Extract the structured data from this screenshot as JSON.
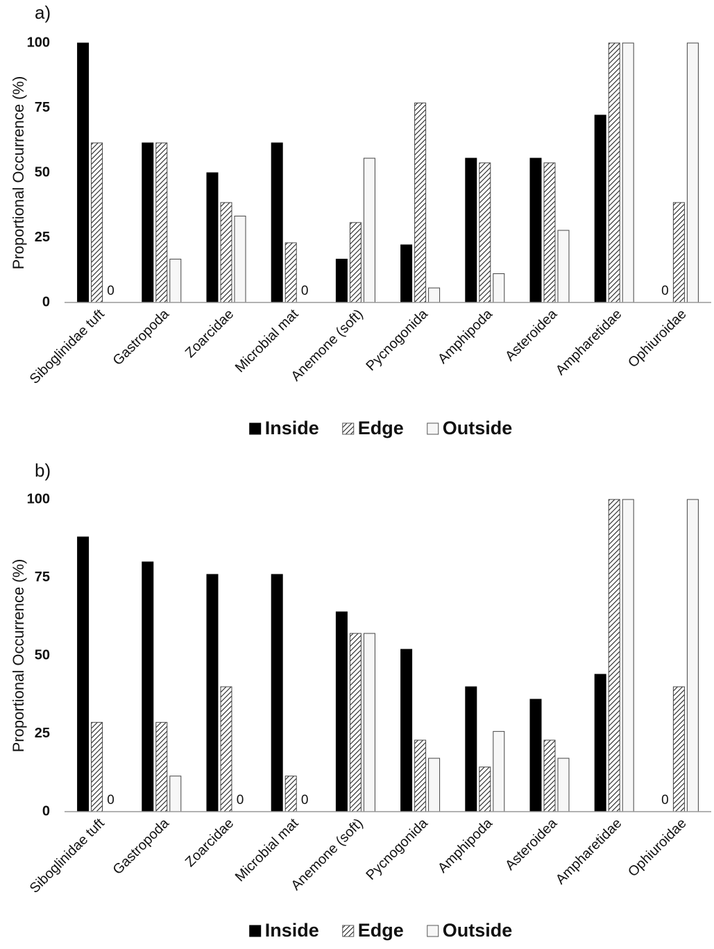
{
  "chart_data": [
    {
      "type": "bar",
      "title": "a)",
      "y_label": "Proportional Occurrence (%)",
      "categories": [
        "Siboglinidae tuft",
        "Gastropoda",
        "Zoarcidae",
        "Microbial mat",
        "Anemone (soft)",
        "Pycnogonida",
        "Amphipoda",
        "Asteroidea",
        "Ampharetidae",
        "Ophiuroidae"
      ],
      "series": [
        {
          "name": "Inside",
          "color": "#000000",
          "values": [
            100,
            61.5,
            50,
            61.5,
            16.7,
            22.2,
            55.6,
            55.6,
            72.2,
            0
          ]
        },
        {
          "name": "Edge",
          "color": "#ffffff",
          "pattern": "hatch",
          "values": [
            61.5,
            61.5,
            38.5,
            23,
            30.8,
            76.9,
            53.8,
            53.8,
            100,
            38.5
          ]
        },
        {
          "name": "Outside",
          "color": "#f7f7f7",
          "values": [
            0,
            16.7,
            33.3,
            0,
            55.6,
            5.6,
            11.1,
            27.8,
            100,
            100
          ]
        }
      ],
      "ylim": [
        0,
        100
      ],
      "yticks": [
        0,
        25,
        50,
        75,
        100
      ],
      "grid": false,
      "legend": "bottom"
    },
    {
      "type": "bar",
      "title": "b)",
      "y_label": "Proportional Occurrence (%)",
      "categories": [
        "Siboglinidae tuft",
        "Gastropoda",
        "Zoarcidae",
        "Microbial mat",
        "Anemone (soft)",
        "Pycnogonida",
        "Amphipoda",
        "Asteroidea",
        "Ampharetidae",
        "Ophiuroidae"
      ],
      "series": [
        {
          "name": "Inside",
          "color": "#000000",
          "values": [
            88,
            80,
            76,
            76,
            64,
            52,
            40,
            36,
            44,
            0
          ]
        },
        {
          "name": "Edge",
          "color": "#ffffff",
          "pattern": "hatch",
          "values": [
            28.6,
            28.6,
            40,
            11.4,
            57.1,
            22.9,
            14.3,
            22.9,
            100,
            40
          ]
        },
        {
          "name": "Outside",
          "color": "#f7f7f7",
          "values": [
            0,
            11.4,
            0,
            0,
            57.1,
            17.1,
            25.7,
            17.1,
            100,
            100
          ]
        }
      ],
      "ylim": [
        0,
        100
      ],
      "yticks": [
        0,
        25,
        50,
        75,
        100
      ],
      "grid": false,
      "legend": "bottom"
    }
  ]
}
